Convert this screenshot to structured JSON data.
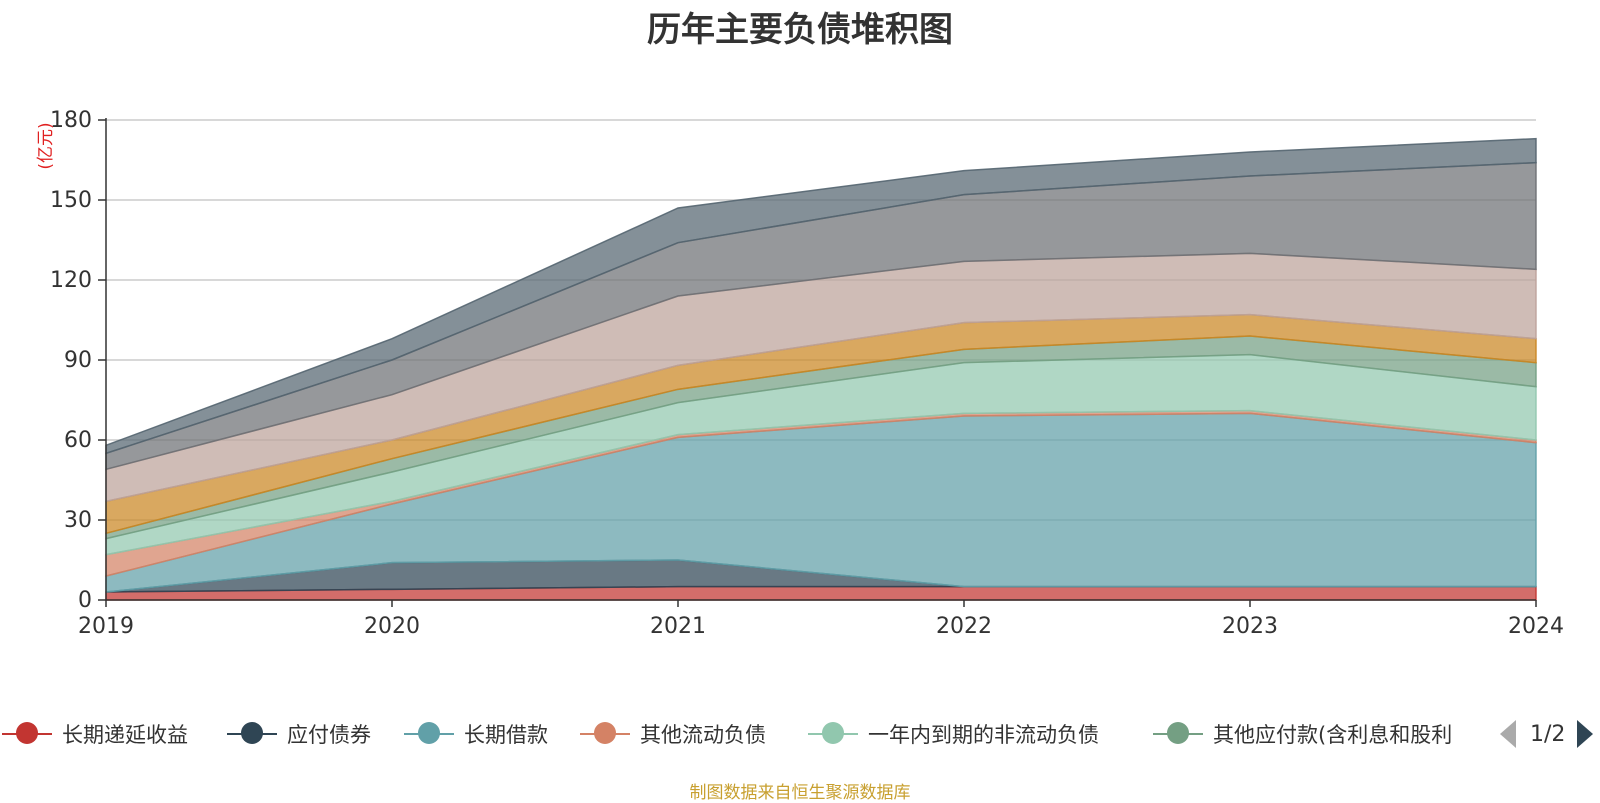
{
  "chart_data": {
    "type": "area",
    "stacked": true,
    "title": "历年主要负债堆积图",
    "unit_label": "(亿元)",
    "x": [
      "2019",
      "2020",
      "2021",
      "2022",
      "2023",
      "2024"
    ],
    "ylim": [
      0,
      180
    ],
    "yticks": [
      0,
      30,
      60,
      90,
      120,
      150,
      180
    ],
    "grid": true,
    "legend_position": "bottom",
    "series": [
      {
        "name": "长期递延收益",
        "color": "#c23531",
        "values": [
          3,
          4,
          5,
          5,
          5,
          5
        ]
      },
      {
        "name": "应付债券",
        "color": "#2f4554",
        "values": [
          0,
          10,
          10,
          0,
          0,
          0
        ]
      },
      {
        "name": "长期借款",
        "color": "#61a0a8",
        "values": [
          6,
          22,
          46,
          64,
          65,
          54
        ]
      },
      {
        "name": "其他流动负债",
        "color": "#d48265",
        "values": [
          8,
          1,
          1,
          1,
          1,
          1
        ]
      },
      {
        "name": "一年内到期的非流动负债",
        "color": "#91c7ae",
        "values": [
          6,
          11,
          12,
          19,
          21,
          20
        ]
      },
      {
        "name": "其他应付款(含利息和股利)",
        "color": "#749f83",
        "values": [
          2,
          5,
          5,
          5,
          7,
          9
        ]
      },
      {
        "name": "",
        "color": "#ca8622",
        "values": [
          12,
          7,
          9,
          10,
          8,
          9
        ]
      },
      {
        "name": "",
        "color": "#bda29a",
        "values": [
          12,
          17,
          26,
          23,
          23,
          26
        ]
      },
      {
        "name": "",
        "color": "#6e7074",
        "values": [
          6,
          13,
          20,
          25,
          29,
          40
        ]
      },
      {
        "name": "",
        "color": "#546570",
        "values": [
          3,
          8,
          13,
          9,
          9,
          9
        ]
      }
    ]
  },
  "legend": {
    "items": [
      {
        "label": "长期递延收益",
        "color": "#c23531"
      },
      {
        "label": "应付债券",
        "color": "#2f4554"
      },
      {
        "label": "长期借款",
        "color": "#61a0a8"
      },
      {
        "label": "其他流动负债",
        "color": "#d48265"
      },
      {
        "label": "一年内到期的非流动负债",
        "color": "#91c7ae"
      },
      {
        "label": "其他应付款(含利息和股利",
        "color": "#749f83"
      }
    ],
    "page": "1/2"
  },
  "source_note": "制图数据来自恒生聚源数据库"
}
